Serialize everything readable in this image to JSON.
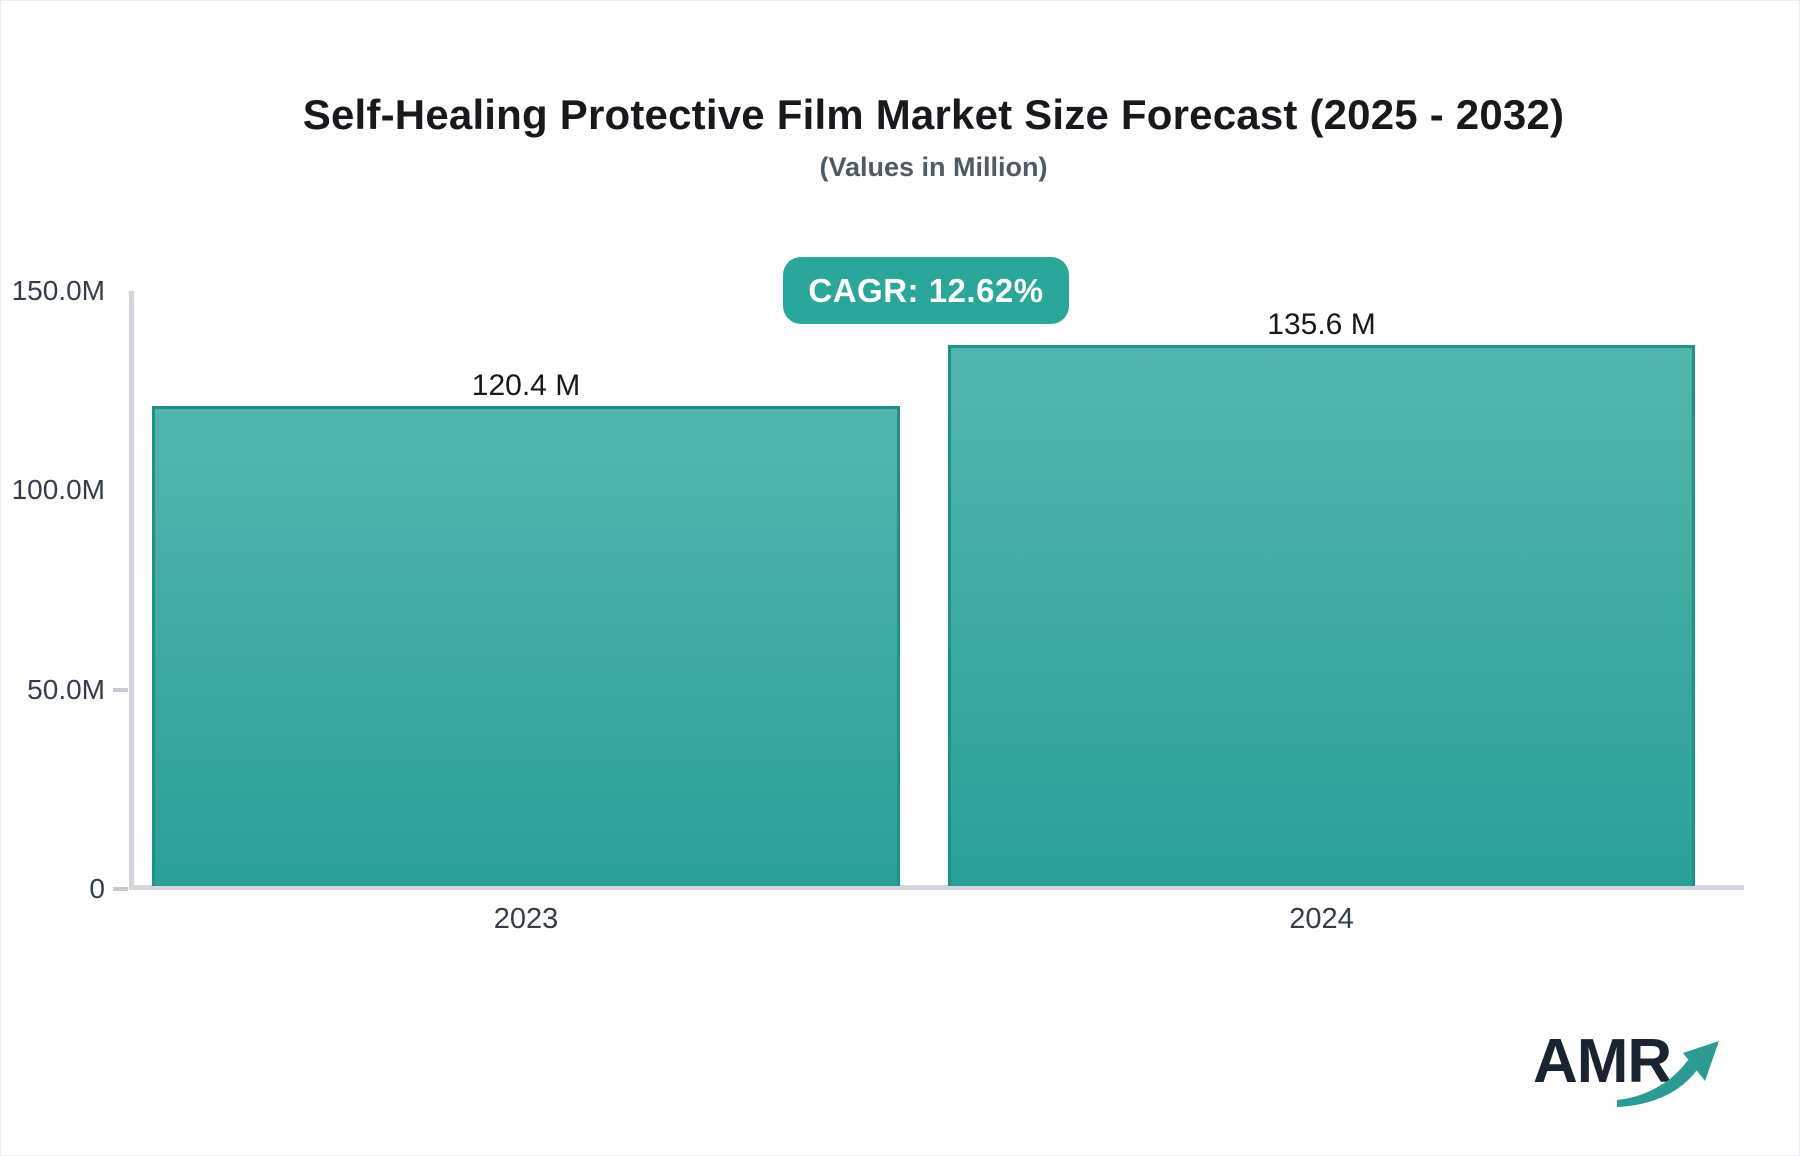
{
  "header": {
    "title": "Self-Healing Protective Film Market Size Forecast (2025 - 2032)",
    "subtitle": "(Values in Million)"
  },
  "cagr_badge": {
    "label": "CAGR: 12.62%",
    "background": "#2aa69b",
    "text_color": "#ffffff"
  },
  "chart_data": {
    "type": "bar",
    "title": "Self-Healing Protective Film Market Size Forecast (2025 - 2032)",
    "subtitle": "(Values in Million)",
    "unit": "Million",
    "cagr": "12.62%",
    "categories": [
      "2023",
      "2024"
    ],
    "values": [
      120.4,
      135.6
    ],
    "value_labels": [
      "120.4 M",
      "135.6 M"
    ],
    "ylim": [
      0,
      150
    ],
    "ytick_values": [
      0,
      50,
      100,
      150
    ],
    "ytick_labels": [
      "0",
      "50.0M",
      "100.0M",
      "150.0M"
    ],
    "grid": false,
    "legend_position": "none",
    "bar_gradient_top": "#52b5ab",
    "bar_gradient_bottom": "#29a197",
    "bar_border_color": "#1f9288",
    "axis_line_color": "#d3d6dd"
  },
  "logo": {
    "text": "AMR",
    "arrow_color": "#2d9a94"
  }
}
